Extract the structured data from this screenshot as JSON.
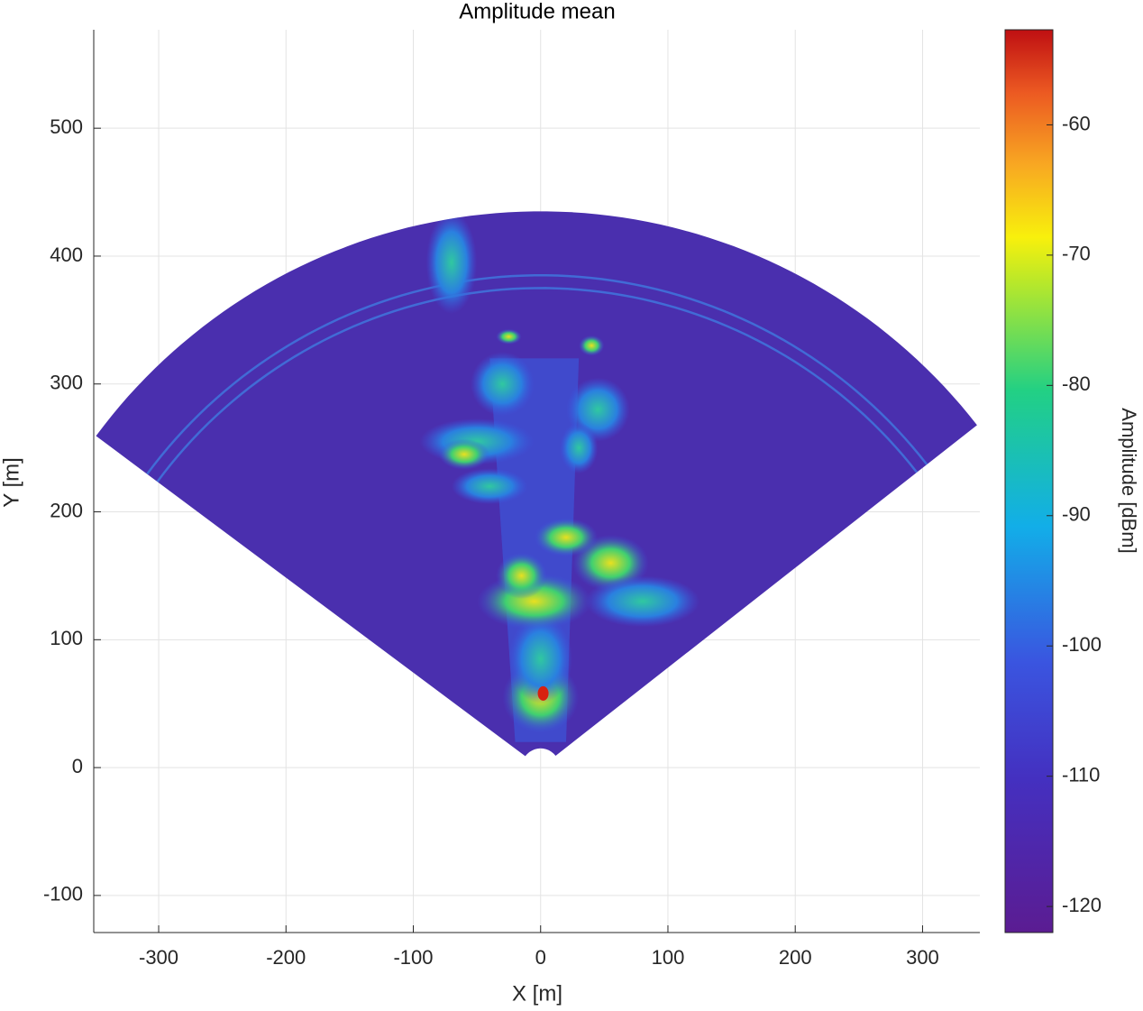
{
  "chart_data": {
    "type": "heatmap",
    "title": "Amplitude mean",
    "xlabel": "X [m]",
    "ylabel": "Y [m]",
    "xlim": [
      -351,
      345
    ],
    "ylim": [
      -129,
      577
    ],
    "xticks": [
      -300,
      -200,
      -100,
      0,
      100,
      200,
      300
    ],
    "yticks": [
      -100,
      0,
      100,
      200,
      300,
      400,
      500
    ],
    "grid": true,
    "colorbar_label": "Amplitude [dBm]",
    "clim": [
      -122,
      -52.7
    ],
    "cticks": [
      -120,
      -110,
      -100,
      -90,
      -80,
      -70,
      -60
    ]
  }
}
